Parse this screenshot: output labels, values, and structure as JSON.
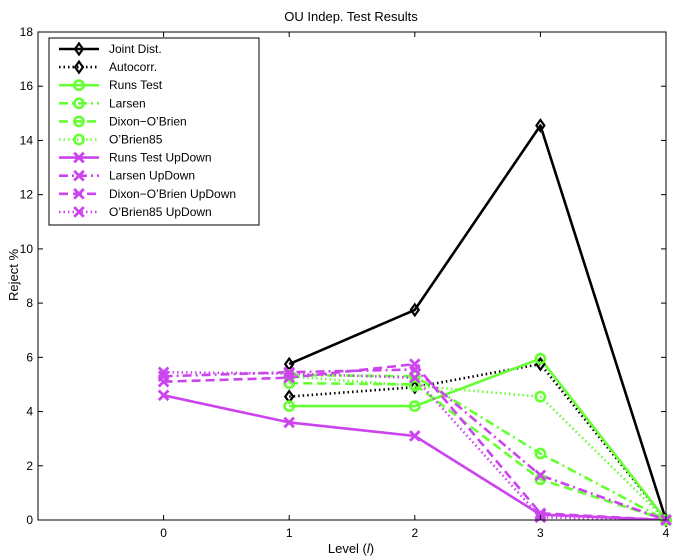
{
  "chart_data": {
    "type": "line",
    "title": "OU Indep. Test Results",
    "xlabel": "Level (",
    "xlabel_italic": "l",
    "xlabel_close": ")",
    "ylabel": "Reject %",
    "xlim": [
      -1,
      4
    ],
    "ylim": [
      0,
      18
    ],
    "xticks": [
      0,
      1,
      2,
      3,
      4
    ],
    "yticks": [
      0,
      2,
      4,
      6,
      8,
      10,
      12,
      14,
      16,
      18
    ],
    "grid": false,
    "legend_position": "top-left",
    "series": [
      {
        "name": "Joint Dist.",
        "x": [
          1,
          2,
          3,
          4
        ],
        "values": [
          5.75,
          7.75,
          14.55,
          0
        ],
        "color": "#000000",
        "dash": "solid",
        "marker": "diamond"
      },
      {
        "name": "Autocorr.",
        "x": [
          1,
          2,
          3,
          4
        ],
        "values": [
          4.55,
          4.9,
          5.75,
          0
        ],
        "color": "#000000",
        "dash": "dotted",
        "marker": "diamond"
      },
      {
        "name": "Runs Test",
        "x": [
          1,
          2,
          3,
          4
        ],
        "values": [
          4.2,
          4.2,
          5.95,
          0
        ],
        "color": "#66ff33",
        "dash": "solid",
        "marker": "circle"
      },
      {
        "name": "Larsen",
        "x": [
          1,
          2,
          3,
          4
        ],
        "values": [
          5.35,
          5.3,
          2.45,
          0
        ],
        "color": "#66ff33",
        "dash": "dashdot",
        "marker": "circle"
      },
      {
        "name": "Dixon−O’Brien",
        "x": [
          1,
          2,
          3,
          4
        ],
        "values": [
          5.05,
          5.0,
          1.5,
          0
        ],
        "color": "#66ff33",
        "dash": "dashed",
        "marker": "circle"
      },
      {
        "name": "O’Brien85",
        "x": [
          1,
          2,
          3,
          4
        ],
        "values": [
          5.3,
          4.95,
          4.55,
          0
        ],
        "color": "#66ff33",
        "dash": "dotted",
        "marker": "circle"
      },
      {
        "name": "Runs Test UpDown",
        "x": [
          0,
          1,
          2,
          3,
          4
        ],
        "values": [
          4.6,
          3.6,
          3.1,
          0.2,
          0
        ],
        "color": "#cc44ee",
        "dash": "solid",
        "marker": "x"
      },
      {
        "name": "Larsen UpDown",
        "x": [
          0,
          1,
          2,
          3,
          4
        ],
        "values": [
          5.3,
          5.45,
          5.55,
          1.65,
          0
        ],
        "color": "#cc44ee",
        "dash": "dashdot",
        "marker": "x"
      },
      {
        "name": "Dixon−O’Brien UpDown",
        "x": [
          0,
          1,
          2,
          3,
          4
        ],
        "values": [
          5.1,
          5.25,
          5.75,
          0.25,
          0
        ],
        "color": "#cc44ee",
        "dash": "dashed",
        "marker": "x"
      },
      {
        "name": "O’Brien85 UpDown",
        "x": [
          0,
          1,
          2,
          3,
          4
        ],
        "values": [
          5.45,
          5.4,
          5.25,
          0.1,
          0
        ],
        "color": "#cc44ee",
        "dash": "dotted",
        "marker": "x"
      }
    ]
  }
}
